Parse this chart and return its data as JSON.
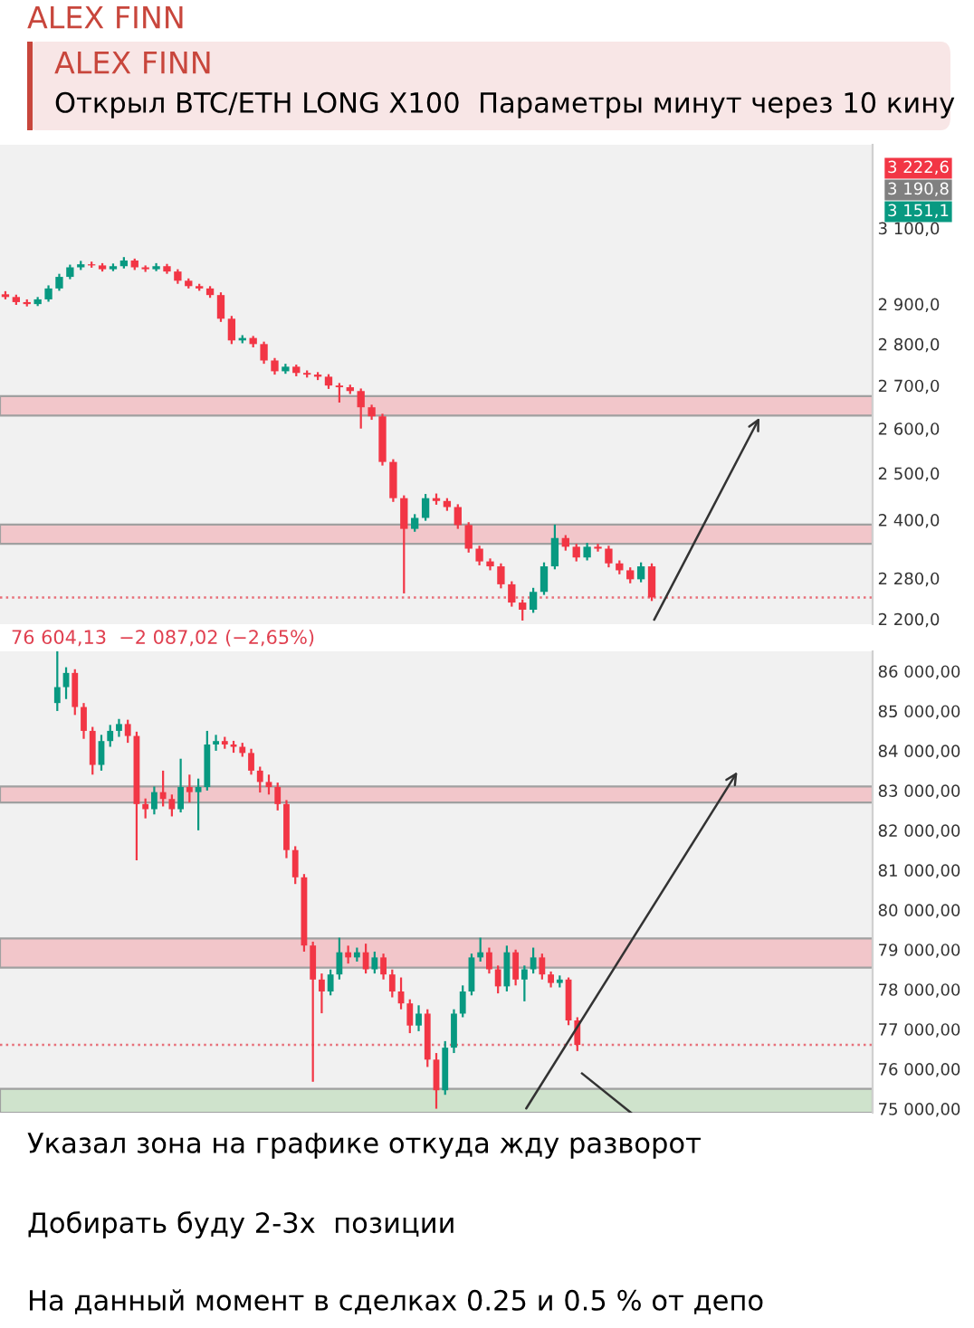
{
  "chart_data": [
    {
      "type": "candlestick",
      "log": true,
      "tick_labels": "y",
      "grid": false,
      "annotations": [
        "ALEX FINN",
        "ALEX FINN",
        "Открыл BTC/ETH LONG X100  Параметры минут через 10 кину",
        "3 222,6",
        "3 190,8",
        "3 151,1"
      ],
      "categories": [
        null,
        null,
        null,
        null,
        null,
        null,
        null,
        null,
        null,
        null,
        null,
        null,
        null,
        null,
        null,
        null,
        null,
        null,
        null,
        null,
        null,
        null,
        null,
        null,
        null,
        null,
        null,
        null,
        null,
        null,
        null,
        null,
        null,
        null,
        null,
        null,
        null,
        null,
        null,
        null,
        null,
        null,
        null,
        null,
        null,
        null,
        null,
        null,
        null,
        null,
        null,
        null,
        null,
        null,
        null,
        null,
        null,
        null,
        null,
        null,
        null,
        null,
        null,
        null,
        null,
        null,
        null,
        null,
        null,
        null,
        null,
        null,
        null,
        null,
        null,
        null,
        null,
        null,
        null,
        null,
        null
      ],
      "ohlc": [
        [
          2925,
          2933,
          2912,
          2918
        ],
        [
          2918,
          2924,
          2898,
          2905
        ],
        [
          2905,
          2912,
          2894,
          2900
        ],
        [
          2900,
          2918,
          2895,
          2912
        ],
        [
          2912,
          2948,
          2906,
          2940
        ],
        [
          2940,
          2978,
          2934,
          2970
        ],
        [
          2970,
          3002,
          2964,
          2995
        ],
        [
          2995,
          3012,
          2988,
          3003
        ],
        [
          3003,
          3010,
          2994,
          3000
        ],
        [
          3000,
          3006,
          2984,
          2990
        ],
        [
          2990,
          3005,
          2985,
          2998
        ],
        [
          2998,
          3022,
          2992,
          3013
        ],
        [
          3013,
          3018,
          2988,
          2995
        ],
        [
          2995,
          3000,
          2983,
          2990
        ],
        [
          2990,
          3006,
          2985,
          2998
        ],
        [
          2998,
          3004,
          2978,
          2984
        ],
        [
          2984,
          2990,
          2952,
          2960
        ],
        [
          2960,
          2966,
          2940,
          2946
        ],
        [
          2946,
          2952,
          2934,
          2940
        ],
        [
          2940,
          2946,
          2916,
          2923
        ],
        [
          2923,
          2930,
          2855,
          2863
        ],
        [
          2863,
          2870,
          2800,
          2809
        ],
        [
          2809,
          2822,
          2802,
          2815
        ],
        [
          2815,
          2820,
          2792,
          2800
        ],
        [
          2800,
          2806,
          2752,
          2760
        ],
        [
          2760,
          2766,
          2726,
          2734
        ],
        [
          2734,
          2752,
          2728,
          2745
        ],
        [
          2745,
          2750,
          2722,
          2730
        ],
        [
          2730,
          2736,
          2719,
          2726
        ],
        [
          2726,
          2732,
          2713,
          2721
        ],
        [
          2721,
          2727,
          2692,
          2700
        ],
        [
          2700,
          2706,
          2660,
          2696
        ],
        [
          2696,
          2702,
          2680,
          2687
        ],
        [
          2687,
          2693,
          2600,
          2649
        ],
        [
          2649,
          2655,
          2620,
          2628
        ],
        [
          2628,
          2634,
          2517,
          2525
        ],
        [
          2525,
          2531,
          2438,
          2446
        ],
        [
          2446,
          2452,
          2250,
          2381
        ],
        [
          2381,
          2412,
          2375,
          2404
        ],
        [
          2404,
          2455,
          2398,
          2446
        ],
        [
          2446,
          2456,
          2432,
          2440
        ],
        [
          2440,
          2446,
          2419,
          2427
        ],
        [
          2427,
          2433,
          2381,
          2389
        ],
        [
          2389,
          2395,
          2332,
          2340
        ],
        [
          2340,
          2346,
          2306,
          2314
        ],
        [
          2314,
          2320,
          2296,
          2304
        ],
        [
          2304,
          2310,
          2260,
          2268
        ],
        [
          2268,
          2274,
          2224,
          2232
        ],
        [
          2232,
          2238,
          2197,
          2218
        ],
        [
          2218,
          2261,
          2212,
          2253
        ],
        [
          2253,
          2312,
          2247,
          2304
        ],
        [
          2304,
          2390,
          2298,
          2362
        ],
        [
          2362,
          2368,
          2336,
          2344
        ],
        [
          2344,
          2350,
          2314,
          2322
        ],
        [
          2322,
          2352,
          2316,
          2344
        ],
        [
          2344,
          2350,
          2334,
          2340
        ],
        [
          2340,
          2346,
          2302,
          2310
        ],
        [
          2310,
          2316,
          2288,
          2296
        ],
        [
          2296,
          2302,
          2270,
          2278
        ],
        [
          2278,
          2312,
          2272,
          2304
        ],
        [
          2304,
          2310,
          2235,
          2242
        ],
        null,
        null,
        null,
        null,
        null,
        null,
        null,
        null,
        null,
        null,
        null,
        null,
        null,
        null,
        null,
        null,
        null,
        null,
        null,
        null
      ],
      "ylim": [
        2190,
        3335
      ],
      "yticks": [
        {
          "value": 3100,
          "label": "3 100,0"
        },
        {
          "value": 2900,
          "label": "2 900,0"
        },
        {
          "value": 2800,
          "label": "2 800,0"
        },
        {
          "value": 2700,
          "label": "2 700,0"
        },
        {
          "value": 2600,
          "label": "2 600,0"
        },
        {
          "value": 2500,
          "label": "2 500,0"
        },
        {
          "value": 2400,
          "label": "2 400,0"
        },
        {
          "value": 2280,
          "label": "2 280,0"
        },
        {
          "value": 2200,
          "label": "2 200,0"
        }
      ],
      "bands": [
        {
          "axis": "y",
          "from": 2630,
          "to": 2675,
          "color": "#f2c6ca"
        },
        {
          "axis": "y",
          "from": 2350,
          "to": 2390,
          "color": "#f2c6ca"
        }
      ],
      "ref_lines": [
        {
          "axis": "y",
          "value": 2242,
          "color": "#e8707a",
          "line_style": "dotted"
        }
      ]
    },
    {
      "type": "candlestick",
      "tick_labels": "y",
      "grid": false,
      "annotations": [
        "76 604,13  −2 087,02 (−2,65%)",
        "Указал зона на графике откуда жду разворот",
        "Добирать буду 2-3х  позиции",
        "На данный момент в сделках 0.25 и 0.5 % от депо"
      ],
      "categories": [
        null,
        null,
        null,
        null,
        null,
        null,
        null,
        null,
        null,
        null,
        null,
        null,
        null,
        null,
        null,
        null,
        null,
        null,
        null,
        null,
        null,
        null,
        null,
        null,
        null,
        null,
        null,
        null,
        null,
        null,
        null,
        null,
        null,
        null,
        null,
        null,
        null,
        null,
        null,
        null,
        null,
        null,
        null,
        null,
        null,
        null,
        null,
        null,
        null,
        null,
        null,
        null,
        null,
        null,
        null,
        null,
        null,
        null,
        null,
        null,
        null,
        null,
        null,
        null,
        null,
        null,
        null,
        null,
        null,
        null,
        null,
        null,
        null,
        null,
        null,
        null,
        null,
        null,
        null,
        null,
        null,
        null,
        null,
        null,
        null,
        null,
        null,
        null,
        null,
        null,
        null,
        null,
        null,
        null,
        null,
        null,
        null,
        null,
        null
      ],
      "ohlc": [
        null,
        null,
        null,
        null,
        null,
        null,
        [
          85200,
          86500,
          85000,
          85600
        ],
        [
          85600,
          86100,
          85300,
          85957
        ],
        [
          85957,
          86050,
          84900,
          85100
        ],
        [
          85100,
          85200,
          84300,
          84500
        ],
        [
          84500,
          84600,
          83400,
          83645
        ],
        [
          83645,
          84400,
          83500,
          84244
        ],
        [
          84244,
          84650,
          84100,
          84500
        ],
        [
          84500,
          84800,
          84350,
          84672
        ],
        [
          84672,
          84780,
          84200,
          84372
        ],
        [
          84372,
          84480,
          81246,
          82660
        ],
        [
          82660,
          82800,
          82300,
          82531
        ],
        [
          82531,
          83100,
          82400,
          82960
        ],
        [
          82960,
          83500,
          82600,
          82788
        ],
        [
          82788,
          82900,
          82350,
          82531
        ],
        [
          82531,
          83800,
          82450,
          83088
        ],
        [
          83088,
          83400,
          82700,
          82960
        ],
        [
          82960,
          83300,
          82000,
          83088
        ],
        [
          83088,
          84500,
          83000,
          84158
        ],
        [
          84158,
          84400,
          84000,
          84244
        ],
        [
          84244,
          84350,
          84050,
          84158
        ],
        [
          84158,
          84250,
          83950,
          84100
        ],
        [
          84100,
          84200,
          83850,
          83944
        ],
        [
          83944,
          84050,
          83400,
          83500
        ],
        [
          83500,
          83600,
          82950,
          83216
        ],
        [
          83216,
          83400,
          82900,
          83088
        ],
        [
          83088,
          83200,
          82500,
          82660
        ],
        [
          82660,
          82760,
          81300,
          81503
        ],
        [
          81503,
          81600,
          80650,
          80818
        ],
        [
          80818,
          80900,
          78950,
          79104
        ],
        [
          79104,
          79200,
          75678,
          78248
        ],
        [
          78248,
          78400,
          77400,
          77948
        ],
        [
          77948,
          78500,
          77850,
          78376
        ],
        [
          78376,
          79300,
          78250,
          78933
        ],
        [
          78933,
          79100,
          78650,
          78804
        ],
        [
          78804,
          79050,
          78700,
          78933
        ],
        [
          78933,
          79150,
          78400,
          78505
        ],
        [
          78505,
          78950,
          78400,
          78804
        ],
        [
          78804,
          78900,
          78250,
          78376
        ],
        [
          78376,
          78500,
          77800,
          77948
        ],
        [
          77948,
          78300,
          77500,
          77648
        ],
        [
          77648,
          77750,
          76900,
          77091
        ],
        [
          77091,
          77600,
          76950,
          77391
        ],
        [
          77391,
          77500,
          76050,
          76235
        ],
        [
          76235,
          76400,
          75000,
          75464
        ],
        [
          75464,
          76700,
          75350,
          76535
        ],
        [
          76535,
          77500,
          76400,
          77391
        ],
        [
          77391,
          78100,
          77300,
          77948
        ],
        [
          77948,
          78900,
          77850,
          78804
        ],
        [
          78804,
          79300,
          78700,
          78933
        ],
        [
          78933,
          79050,
          78400,
          78505
        ],
        [
          78505,
          78600,
          77900,
          78076
        ],
        [
          78076,
          79100,
          77950,
          78933
        ],
        [
          78933,
          79000,
          78100,
          78248
        ],
        [
          78248,
          78600,
          77700,
          78505
        ],
        [
          78505,
          79050,
          78400,
          78804
        ],
        [
          78804,
          78900,
          78250,
          78376
        ],
        [
          78376,
          78450,
          78050,
          78162
        ],
        [
          78162,
          78350,
          78050,
          78248
        ],
        [
          78248,
          78300,
          77100,
          77220
        ],
        [
          77220,
          77300,
          76450,
          76604
        ],
        null,
        null,
        null,
        null,
        null,
        null,
        null,
        null,
        null,
        null,
        null,
        null,
        null,
        null,
        null,
        null,
        null,
        null,
        null,
        null,
        null,
        null,
        null,
        null,
        null,
        null,
        null,
        null,
        null,
        null,
        null,
        null,
        null
      ],
      "ylim": [
        74900,
        86500
      ],
      "yticks": [
        {
          "value": 86000,
          "label": "86 000,00"
        },
        {
          "value": 85000,
          "label": "85 000,00"
        },
        {
          "value": 84000,
          "label": "84 000,00"
        },
        {
          "value": 83000,
          "label": "83 000,00"
        },
        {
          "value": 82000,
          "label": "82 000,00"
        },
        {
          "value": 81000,
          "label": "81 000,00"
        },
        {
          "value": 80000,
          "label": "80 000,00"
        },
        {
          "value": 79000,
          "label": "79 000,00"
        },
        {
          "value": 78000,
          "label": "78 000,00"
        },
        {
          "value": 77000,
          "label": "77 000,00"
        },
        {
          "value": 76000,
          "label": "76 000,00"
        },
        {
          "value": 75000,
          "label": "75 000,00"
        }
      ],
      "bands": [
        {
          "axis": "y",
          "from": 82700,
          "to": 83100,
          "color": "#f2c6ca"
        },
        {
          "axis": "y",
          "from": 78550,
          "to": 79280,
          "color": "#f2c6ca"
        },
        {
          "axis": "y",
          "from": 74900,
          "to": 75500,
          "color": "#cfe3cc"
        }
      ],
      "ref_lines": [
        {
          "axis": "y",
          "value": 76604,
          "color": "#e8707a",
          "line_style": "dotted"
        }
      ]
    }
  ]
}
